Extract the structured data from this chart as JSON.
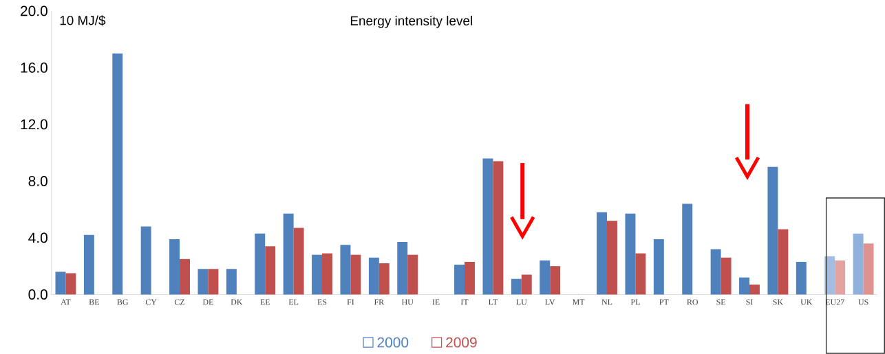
{
  "chart_data": {
    "type": "bar",
    "title": "Energy intensity level",
    "ylabel": "10 MJ/$",
    "categories": [
      "AT",
      "BE",
      "BG",
      "CY",
      "CZ",
      "DE",
      "DK",
      "EE",
      "EL",
      "ES",
      "FI",
      "FR",
      "HU",
      "IE",
      "IT",
      "LT",
      "LU",
      "LV",
      "MT",
      "NL",
      "PL",
      "PT",
      "RO",
      "SE",
      "SI",
      "SK",
      "UK",
      "EU27",
      "US"
    ],
    "series": [
      {
        "name": "2000",
        "color": "#4f81bd",
        "colors": [
          "#4f81bd",
          "#4f81bd",
          "#4f81bd",
          "#4f81bd",
          "#4f81bd",
          "#4f81bd",
          "#4f81bd",
          "#4f81bd",
          "#4f81bd",
          "#4f81bd",
          "#4f81bd",
          "#4f81bd",
          "#4f81bd",
          "#4f81bd",
          "#4f81bd",
          "#4f81bd",
          "#4f81bd",
          "#4f81bd",
          "#4f81bd",
          "#4f81bd",
          "#4f81bd",
          "#4f81bd",
          "#4f81bd",
          "#4f81bd",
          "#4f81bd",
          "#4f81bd",
          "#4f81bd",
          "#a3bee0",
          "#8fb1dc"
        ],
        "values": [
          1.6,
          4.2,
          17.0,
          4.8,
          3.9,
          1.8,
          1.8,
          4.3,
          5.7,
          2.8,
          3.5,
          2.6,
          3.7,
          null,
          2.1,
          9.6,
          1.1,
          2.4,
          null,
          5.8,
          5.7,
          3.9,
          6.4,
          3.2,
          1.2,
          9.0,
          2.3,
          2.7,
          4.3
        ]
      },
      {
        "name": "2009",
        "color": "#c0504d",
        "colors": [
          "#c0504d",
          "#c0504d",
          "#c0504d",
          "#c0504d",
          "#c0504d",
          "#c0504d",
          "#c0504d",
          "#c0504d",
          "#c0504d",
          "#c0504d",
          "#c0504d",
          "#c0504d",
          "#c0504d",
          "#c0504d",
          "#c0504d",
          "#c0504d",
          "#c0504d",
          "#c0504d",
          "#c0504d",
          "#c0504d",
          "#c0504d",
          "#c0504d",
          "#c0504d",
          "#c0504d",
          "#c0504d",
          "#c0504d",
          "#c0504d",
          "#e3a3a1",
          "#de9390"
        ],
        "values": [
          1.5,
          null,
          null,
          null,
          2.5,
          1.8,
          null,
          3.4,
          4.7,
          2.9,
          2.8,
          2.2,
          2.8,
          null,
          2.3,
          9.4,
          1.4,
          2.0,
          null,
          5.2,
          2.9,
          null,
          null,
          2.6,
          0.7,
          4.6,
          null,
          2.4,
          3.6
        ]
      }
    ],
    "ylim": [
      0,
      20
    ],
    "yticks": [
      {
        "value": 0,
        "label": "0.0"
      },
      {
        "value": 4,
        "label": "4.0"
      },
      {
        "value": 8,
        "label": "8.0"
      },
      {
        "value": 12,
        "label": "12.0"
      },
      {
        "value": 16,
        "label": "16.0"
      },
      {
        "value": 20,
        "label": "20.0"
      }
    ],
    "legend": "bottom"
  }
}
